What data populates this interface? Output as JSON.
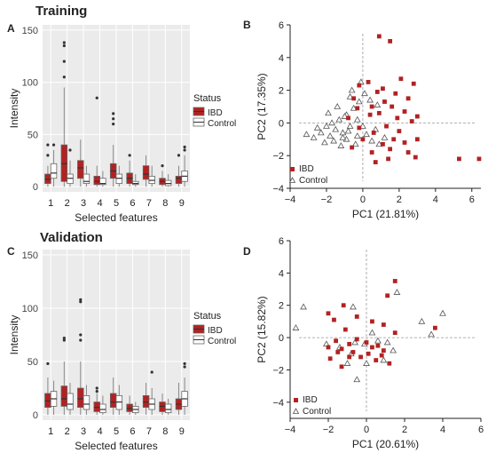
{
  "sections": {
    "training": "Training",
    "validation": "Validation"
  },
  "colors": {
    "ibd": "#b22222",
    "control": "#ffffff",
    "stroke": "#555555",
    "dash": "#999999",
    "axis": "#222222"
  },
  "chart_data": [
    {
      "panel": "A",
      "type": "box",
      "xlabel": "Selected features",
      "ylabel": "Intensity",
      "ylim": [
        -5,
        155
      ],
      "yticks": [
        0,
        50,
        100,
        150
      ],
      "categories": [
        "1",
        "2",
        "3",
        "4",
        "5",
        "6",
        "7",
        "8",
        "9"
      ],
      "legend": {
        "title": "Status",
        "entries": [
          "IBD",
          "Control"
        ]
      },
      "series": [
        {
          "name": "IBD",
          "boxes": [
            {
              "lo": 0,
              "q1": 3,
              "med": 7,
              "q3": 12,
              "hi": 20,
              "out": [
                30,
                40
              ]
            },
            {
              "lo": 0,
              "q1": 5,
              "med": 22,
              "q3": 40,
              "hi": 95,
              "out": [
                105,
                120,
                135,
                138
              ]
            },
            {
              "lo": 0,
              "q1": 8,
              "med": 18,
              "q3": 25,
              "hi": 45,
              "out": []
            },
            {
              "lo": 0,
              "q1": 2,
              "med": 5,
              "q3": 10,
              "hi": 20,
              "out": [
                85
              ]
            },
            {
              "lo": 0,
              "q1": 8,
              "med": 15,
              "q3": 22,
              "hi": 40,
              "out": [
                60,
                65,
                70
              ]
            },
            {
              "lo": 0,
              "q1": 3,
              "med": 8,
              "q3": 13,
              "hi": 25,
              "out": [
                30
              ]
            },
            {
              "lo": 0,
              "q1": 7,
              "med": 12,
              "q3": 20,
              "hi": 30,
              "out": []
            },
            {
              "lo": 0,
              "q1": 2,
              "med": 5,
              "q3": 8,
              "hi": 15,
              "out": [
                20
              ]
            },
            {
              "lo": 0,
              "q1": 3,
              "med": 8,
              "q3": 10,
              "hi": 20,
              "out": [
                30
              ]
            }
          ]
        },
        {
          "name": "Control",
          "boxes": [
            {
              "lo": 0,
              "q1": 8,
              "med": 13,
              "q3": 22,
              "hi": 35,
              "out": [
                40
              ]
            },
            {
              "lo": 0,
              "q1": 3,
              "med": 8,
              "q3": 12,
              "hi": 25,
              "out": [
                35
              ]
            },
            {
              "lo": 0,
              "q1": 3,
              "med": 5,
              "q3": 12,
              "hi": 20,
              "out": []
            },
            {
              "lo": 0,
              "q1": 2,
              "med": 3,
              "q3": 8,
              "hi": 15,
              "out": []
            },
            {
              "lo": 0,
              "q1": 3,
              "med": 8,
              "q3": 12,
              "hi": 20,
              "out": []
            },
            {
              "lo": 0,
              "q1": 2,
              "med": 3,
              "q3": 5,
              "hi": 12,
              "out": []
            },
            {
              "lo": 0,
              "q1": 3,
              "med": 6,
              "q3": 10,
              "hi": 20,
              "out": []
            },
            {
              "lo": 0,
              "q1": 1,
              "med": 3,
              "q3": 6,
              "hi": 12,
              "out": []
            },
            {
              "lo": 0,
              "q1": 5,
              "med": 10,
              "q3": 15,
              "hi": 30,
              "out": [
                35,
                38
              ]
            }
          ]
        }
      ]
    },
    {
      "panel": "B",
      "type": "scatter",
      "xlabel": "PC1 (21.81%)",
      "ylabel": "PC2 (17.35%)",
      "xlim": [
        -4,
        6.5
      ],
      "ylim": [
        -4,
        6
      ],
      "xticks": [
        -4,
        -2,
        0,
        2,
        4,
        6
      ],
      "yticks": [
        -4,
        -2,
        0,
        2,
        4,
        6
      ],
      "series": [
        {
          "name": "IBD",
          "points": [
            [
              0.9,
              5.3
            ],
            [
              1.5,
              5.0
            ],
            [
              -0.2,
              2.3
            ],
            [
              0.3,
              2.5
            ],
            [
              1.1,
              2.1
            ],
            [
              2.1,
              2.7
            ],
            [
              0.8,
              1.9
            ],
            [
              1.8,
              1.8
            ],
            [
              2.5,
              1.5
            ],
            [
              1.2,
              1.3
            ],
            [
              0.5,
              1.0
            ],
            [
              -0.5,
              1.5
            ],
            [
              2.8,
              2.4
            ],
            [
              1.6,
              1.0
            ],
            [
              2.3,
              0.7
            ],
            [
              0.9,
              0.6
            ],
            [
              -0.3,
              0.9
            ],
            [
              0.4,
              0.5
            ],
            [
              1.9,
              0.3
            ],
            [
              -0.8,
              0.3
            ],
            [
              2.7,
              0.1
            ],
            [
              3.0,
              0.4
            ],
            [
              1.3,
              -0.2
            ],
            [
              2.0,
              -0.5
            ],
            [
              0.6,
              -0.6
            ],
            [
              1.7,
              -1.0
            ],
            [
              2.3,
              -1.2
            ],
            [
              1.1,
              -1.3
            ],
            [
              3.0,
              -1.0
            ],
            [
              0.5,
              -1.8
            ],
            [
              2.5,
              -1.8
            ],
            [
              1.4,
              -2.2
            ],
            [
              -0.6,
              -1.5
            ],
            [
              0.0,
              -1.0
            ],
            [
              2.9,
              -2.1
            ],
            [
              5.3,
              -2.2
            ],
            [
              6.4,
              -2.2
            ],
            [
              0.7,
              -2.4
            ],
            [
              -0.2,
              -0.3
            ],
            [
              1.5,
              -1.6
            ]
          ]
        },
        {
          "name": "Control",
          "points": [
            [
              -3.1,
              -0.7
            ],
            [
              -2.7,
              -0.9
            ],
            [
              -2.3,
              -0.6
            ],
            [
              -2.0,
              -0.2
            ],
            [
              -1.8,
              -0.8
            ],
            [
              -1.5,
              -0.4
            ],
            [
              -1.3,
              0.2
            ],
            [
              -1.1,
              -0.6
            ],
            [
              -0.9,
              0.5
            ],
            [
              -0.7,
              -0.2
            ],
            [
              -0.5,
              0.9
            ],
            [
              -0.3,
              -0.8
            ],
            [
              -1.6,
              -1.1
            ],
            [
              -2.1,
              -1.2
            ],
            [
              -1.2,
              -1.4
            ],
            [
              -0.9,
              -1.0
            ],
            [
              -0.4,
              -1.3
            ],
            [
              0.2,
              -0.7
            ],
            [
              0.5,
              -1.1
            ],
            [
              -0.2,
              1.3
            ],
            [
              -0.6,
              2.0
            ],
            [
              -0.1,
              2.5
            ],
            [
              0.1,
              1.8
            ],
            [
              0.4,
              1.4
            ],
            [
              -1.4,
              1.0
            ],
            [
              -1.0,
              0.4
            ],
            [
              0.8,
              1.1
            ],
            [
              0.7,
              -0.4
            ],
            [
              -1.9,
              0.6
            ],
            [
              -2.5,
              -0.3
            ],
            [
              -1.7,
              0.0
            ],
            [
              -0.8,
              -0.5
            ],
            [
              0.9,
              -1.3
            ],
            [
              1.2,
              -0.9
            ],
            [
              -0.3,
              0.2
            ],
            [
              0.0,
              -0.2
            ],
            [
              -1.1,
              -0.9
            ],
            [
              -0.7,
              1.6
            ]
          ]
        }
      ]
    },
    {
      "panel": "C",
      "type": "box",
      "xlabel": "Selected features",
      "ylabel": "Intensity",
      "ylim": [
        -5,
        155
      ],
      "yticks": [
        0,
        50,
        100,
        150
      ],
      "categories": [
        "1",
        "2",
        "3",
        "4",
        "5",
        "6",
        "7",
        "8",
        "9"
      ],
      "legend": {
        "title": "Status",
        "entries": [
          "IBD",
          "Control"
        ]
      },
      "series": [
        {
          "name": "IBD",
          "boxes": [
            {
              "lo": 0,
              "q1": 7,
              "med": 13,
              "q3": 20,
              "hi": 35,
              "out": [
                48
              ]
            },
            {
              "lo": 0,
              "q1": 8,
              "med": 15,
              "q3": 27,
              "hi": 50,
              "out": [
                70,
                72
              ]
            },
            {
              "lo": 0,
              "q1": 7,
              "med": 15,
              "q3": 25,
              "hi": 50,
              "out": [
                70,
                75,
                108,
                106
              ]
            },
            {
              "lo": 0,
              "q1": 3,
              "med": 7,
              "q3": 12,
              "hi": 20,
              "out": [
                22,
                25
              ]
            },
            {
              "lo": 0,
              "q1": 7,
              "med": 12,
              "q3": 20,
              "hi": 35,
              "out": []
            },
            {
              "lo": 0,
              "q1": 3,
              "med": 6,
              "q3": 10,
              "hi": 18,
              "out": []
            },
            {
              "lo": 0,
              "q1": 7,
              "med": 12,
              "q3": 18,
              "hi": 30,
              "out": []
            },
            {
              "lo": 0,
              "q1": 3,
              "med": 8,
              "q3": 12,
              "hi": 20,
              "out": []
            },
            {
              "lo": 0,
              "q1": 5,
              "med": 10,
              "q3": 15,
              "hi": 30,
              "out": []
            }
          ]
        },
        {
          "name": "Control",
          "boxes": [
            {
              "lo": 0,
              "q1": 8,
              "med": 15,
              "q3": 22,
              "hi": 32,
              "out": []
            },
            {
              "lo": 0,
              "q1": 5,
              "med": 10,
              "q3": 20,
              "hi": 30,
              "out": []
            },
            {
              "lo": 0,
              "q1": 5,
              "med": 10,
              "q3": 18,
              "hi": 28,
              "out": []
            },
            {
              "lo": 0,
              "q1": 2,
              "med": 5,
              "q3": 10,
              "hi": 18,
              "out": []
            },
            {
              "lo": 0,
              "q1": 5,
              "med": 12,
              "q3": 18,
              "hi": 28,
              "out": []
            },
            {
              "lo": 0,
              "q1": 2,
              "med": 5,
              "q3": 8,
              "hi": 12,
              "out": []
            },
            {
              "lo": 0,
              "q1": 5,
              "med": 10,
              "q3": 15,
              "hi": 25,
              "out": [
                40
              ]
            },
            {
              "lo": 0,
              "q1": 2,
              "med": 5,
              "q3": 10,
              "hi": 15,
              "out": []
            },
            {
              "lo": 0,
              "q1": 8,
              "med": 15,
              "q3": 22,
              "hi": 35,
              "out": [
                45,
                48
              ]
            }
          ]
        }
      ]
    },
    {
      "panel": "D",
      "type": "scatter",
      "xlabel": "PC1 (20.61%)",
      "ylabel": "PC2 (15.82%)",
      "xlim": [
        -4,
        6
      ],
      "ylim": [
        -5,
        6
      ],
      "xticks": [
        -4,
        -2,
        0,
        2,
        4,
        6
      ],
      "yticks": [
        -4,
        -2,
        0,
        2,
        4,
        6
      ],
      "series": [
        {
          "name": "IBD",
          "points": [
            [
              1.5,
              3.5
            ],
            [
              1.1,
              2.6
            ],
            [
              -1.2,
              2.0
            ],
            [
              -2.0,
              1.5
            ],
            [
              -0.5,
              1.3
            ],
            [
              0.3,
              1.0
            ],
            [
              -1.7,
              1.1
            ],
            [
              0.9,
              0.8
            ],
            [
              -1.1,
              0.5
            ],
            [
              1.5,
              0.3
            ],
            [
              3.6,
              0.6
            ],
            [
              -1.6,
              -0.2
            ],
            [
              -0.5,
              -0.1
            ],
            [
              0.0,
              -0.3
            ],
            [
              -0.9,
              -0.4
            ],
            [
              0.6,
              -0.5
            ],
            [
              -2.0,
              -0.6
            ],
            [
              0.3,
              -0.6
            ],
            [
              -1.3,
              -0.7
            ],
            [
              0.9,
              -0.8
            ],
            [
              -0.3,
              -1.2
            ],
            [
              -0.9,
              -1.2
            ],
            [
              -1.9,
              -1.3
            ],
            [
              0.5,
              -1.4
            ],
            [
              1.2,
              -1.6
            ],
            [
              -1.3,
              -1.8
            ],
            [
              0.1,
              -1.0
            ],
            [
              -0.7,
              -0.9
            ],
            [
              0.8,
              -1.1
            ],
            [
              -1.5,
              -0.9
            ]
          ]
        },
        {
          "name": "Control",
          "points": [
            [
              1.6,
              2.8
            ],
            [
              -3.3,
              1.9
            ],
            [
              -0.7,
              1.9
            ],
            [
              -3.7,
              0.6
            ],
            [
              2.9,
              1.0
            ],
            [
              4.0,
              1.5
            ],
            [
              -0.1,
              -0.4
            ],
            [
              -1.4,
              -0.6
            ],
            [
              0.6,
              -0.2
            ],
            [
              -0.8,
              -1.0
            ],
            [
              0.9,
              -1.4
            ],
            [
              -0.5,
              -2.6
            ],
            [
              1.4,
              -0.8
            ],
            [
              -0.6,
              -0.3
            ],
            [
              0.3,
              0.3
            ],
            [
              -2.1,
              -0.4
            ],
            [
              0.0,
              -1.6
            ],
            [
              1.1,
              -0.3
            ],
            [
              3.4,
              0.2
            ],
            [
              -1.0,
              -1.6
            ]
          ]
        }
      ]
    }
  ]
}
